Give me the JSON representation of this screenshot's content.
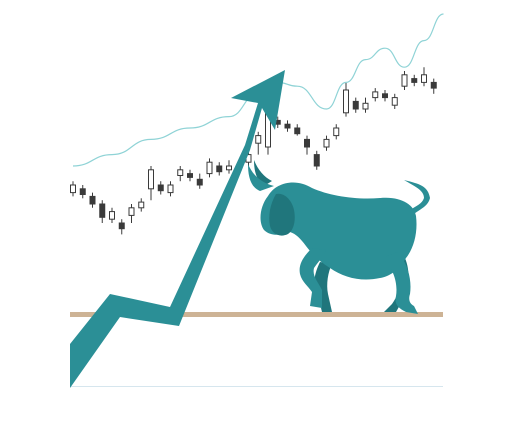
{
  "illustration": {
    "subject": "bull-market",
    "colors": {
      "background": "#ffffff",
      "accent": "#2b8f96",
      "accent_dark": "#20767c",
      "candle_stroke": "#3a3a3a",
      "trend_line": "#8fd3d6",
      "ground": "#cdb395",
      "bottom_rule": "#d6e6ee"
    },
    "candles": [
      {
        "t": 0,
        "open": 46,
        "close": 50,
        "high": 52,
        "low": 44
      },
      {
        "t": 1,
        "open": 48,
        "close": 45,
        "high": 50,
        "low": 43
      },
      {
        "t": 2,
        "open": 44,
        "close": 40,
        "high": 46,
        "low": 38
      },
      {
        "t": 3,
        "open": 40,
        "close": 33,
        "high": 42,
        "low": 30
      },
      {
        "t": 4,
        "open": 32,
        "close": 36,
        "high": 38,
        "low": 30
      },
      {
        "t": 5,
        "open": 30,
        "close": 27,
        "high": 32,
        "low": 24
      },
      {
        "t": 6,
        "open": 34,
        "close": 38,
        "high": 40,
        "low": 30
      },
      {
        "t": 7,
        "open": 38,
        "close": 41,
        "high": 43,
        "low": 36
      },
      {
        "t": 8,
        "open": 48,
        "close": 58,
        "high": 60,
        "low": 42
      },
      {
        "t": 9,
        "open": 50,
        "close": 47,
        "high": 52,
        "low": 45
      },
      {
        "t": 10,
        "open": 46,
        "close": 50,
        "high": 52,
        "low": 44
      },
      {
        "t": 11,
        "open": 55,
        "close": 58,
        "high": 60,
        "low": 52
      },
      {
        "t": 12,
        "open": 56,
        "close": 54,
        "high": 58,
        "low": 52
      },
      {
        "t": 13,
        "open": 53,
        "close": 50,
        "high": 56,
        "low": 48
      },
      {
        "t": 14,
        "open": 56,
        "close": 62,
        "high": 64,
        "low": 54
      },
      {
        "t": 15,
        "open": 60,
        "close": 57,
        "high": 62,
        "low": 55
      },
      {
        "t": 16,
        "open": 58,
        "close": 60,
        "high": 63,
        "low": 56
      },
      {
        "t": 17,
        "open": 60,
        "close": 58,
        "high": 62,
        "low": 56
      },
      {
        "t": 18,
        "open": 62,
        "close": 66,
        "high": 68,
        "low": 60
      },
      {
        "t": 19,
        "open": 72,
        "close": 76,
        "high": 78,
        "low": 66
      },
      {
        "t": 20,
        "open": 70,
        "close": 88,
        "high": 90,
        "low": 66
      },
      {
        "t": 21,
        "open": 84,
        "close": 82,
        "high": 86,
        "low": 80
      },
      {
        "t": 22,
        "open": 82,
        "close": 80,
        "high": 84,
        "low": 78
      },
      {
        "t": 23,
        "open": 80,
        "close": 77,
        "high": 82,
        "low": 76
      },
      {
        "t": 24,
        "open": 74,
        "close": 70,
        "high": 76,
        "low": 66
      },
      {
        "t": 25,
        "open": 66,
        "close": 60,
        "high": 68,
        "low": 58
      },
      {
        "t": 26,
        "open": 70,
        "close": 74,
        "high": 76,
        "low": 68
      },
      {
        "t": 27,
        "open": 76,
        "close": 80,
        "high": 82,
        "low": 74
      },
      {
        "t": 28,
        "open": 88,
        "close": 100,
        "high": 104,
        "low": 86
      },
      {
        "t": 29,
        "open": 94,
        "close": 90,
        "high": 96,
        "low": 88
      },
      {
        "t": 30,
        "open": 90,
        "close": 93,
        "high": 96,
        "low": 88
      },
      {
        "t": 31,
        "open": 96,
        "close": 99,
        "high": 101,
        "low": 94
      },
      {
        "t": 32,
        "open": 98,
        "close": 96,
        "high": 100,
        "low": 94
      },
      {
        "t": 33,
        "open": 92,
        "close": 96,
        "high": 98,
        "low": 90
      },
      {
        "t": 34,
        "open": 102,
        "close": 108,
        "high": 110,
        "low": 100
      },
      {
        "t": 35,
        "open": 106,
        "close": 104,
        "high": 108,
        "low": 102
      },
      {
        "t": 36,
        "open": 104,
        "close": 108,
        "high": 112,
        "low": 102
      },
      {
        "t": 37,
        "open": 104,
        "close": 101,
        "high": 106,
        "low": 98
      }
    ],
    "trend": [
      {
        "t": 0,
        "v": 60
      },
      {
        "t": 4,
        "v": 66
      },
      {
        "t": 8,
        "v": 74
      },
      {
        "t": 12,
        "v": 80
      },
      {
        "t": 16,
        "v": 86
      },
      {
        "t": 19,
        "v": 98
      },
      {
        "t": 21,
        "v": 104
      },
      {
        "t": 23,
        "v": 102
      },
      {
        "t": 26,
        "v": 90
      },
      {
        "t": 28,
        "v": 104
      },
      {
        "t": 30,
        "v": 116
      },
      {
        "t": 32,
        "v": 122
      },
      {
        "t": 34,
        "v": 112
      },
      {
        "t": 36,
        "v": 126
      },
      {
        "t": 38,
        "v": 140
      }
    ]
  }
}
